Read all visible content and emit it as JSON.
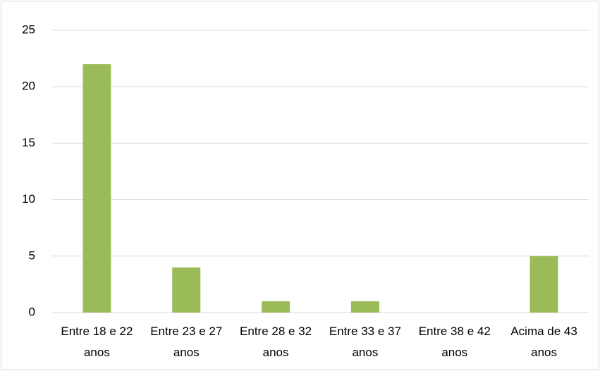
{
  "chart_data": {
    "type": "bar",
    "categories": [
      "Entre 18 e 22 anos",
      "Entre 23 e 27 anos",
      "Entre 28 e 32 anos",
      "Entre 33 e 37 anos",
      "Entre 38 e 42 anos",
      "Acima de 43 anos"
    ],
    "values": [
      22,
      4,
      1,
      1,
      0,
      5
    ],
    "color": "#9bbb59",
    "ylim": [
      0,
      25
    ],
    "yticks": [
      0,
      5,
      10,
      15,
      20,
      25
    ],
    "grid": true
  }
}
